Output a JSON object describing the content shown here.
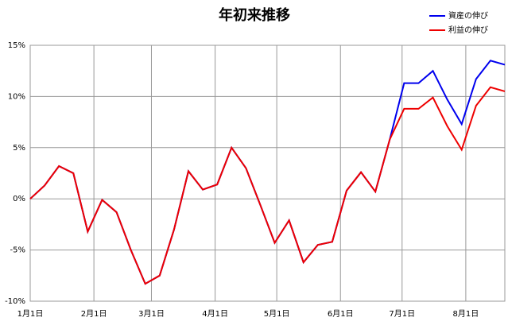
{
  "chart_data": {
    "type": "line",
    "title": "年初来推移",
    "x": [
      0,
      7,
      14,
      21,
      28,
      35,
      42,
      49,
      56,
      63,
      70,
      77,
      84,
      91,
      98,
      105,
      112,
      119,
      126,
      133,
      140,
      147,
      154,
      161,
      168,
      175,
      182,
      189,
      196,
      203,
      210,
      217,
      224,
      231
    ],
    "series": [
      {
        "name": "資産の伸び",
        "color": "#0000ee",
        "values": [
          0,
          1.3,
          3.2,
          2.5,
          -3.2,
          -0.1,
          -1.3,
          -5,
          -8.3,
          -7.5,
          -3,
          2.7,
          0.9,
          1.4,
          5,
          3,
          -0.6,
          -4.3,
          -2.1,
          -6.2,
          -4.5,
          -4.2,
          0.8,
          2.6,
          0.7,
          5.8,
          11.3,
          11.3,
          12.5,
          9.7,
          7.3,
          11.7,
          13.5,
          13.1
        ]
      },
      {
        "name": "利益の伸び",
        "color": "#ee0000",
        "values": [
          0,
          1.3,
          3.2,
          2.5,
          -3.2,
          -0.1,
          -1.3,
          -5,
          -8.3,
          -7.5,
          -3,
          2.7,
          0.9,
          1.4,
          5,
          3,
          -0.6,
          -4.3,
          -2.1,
          -6.2,
          -4.5,
          -4.2,
          0.8,
          2.6,
          0.7,
          5.8,
          8.8,
          8.8,
          9.9,
          7.1,
          4.8,
          9.1,
          10.9,
          10.5
        ]
      }
    ],
    "xlim": [
      0,
      231
    ],
    "xticks": [
      {
        "value": 0,
        "label": "1月1日"
      },
      {
        "value": 31,
        "label": "2月1日"
      },
      {
        "value": 59,
        "label": "3月1日"
      },
      {
        "value": 90,
        "label": "4月1日"
      },
      {
        "value": 120,
        "label": "5月1日"
      },
      {
        "value": 151,
        "label": "6月1日"
      },
      {
        "value": 181,
        "label": "7月1日"
      },
      {
        "value": 212,
        "label": "8月1日"
      }
    ],
    "ylim": [
      -10,
      15
    ],
    "yticks": [
      {
        "value": -10,
        "label": "-10%"
      },
      {
        "value": -5,
        "label": "-5%"
      },
      {
        "value": 0,
        "label": "0%"
      },
      {
        "value": 5,
        "label": "5%"
      },
      {
        "value": 10,
        "label": "10%"
      },
      {
        "value": 15,
        "label": "15%"
      }
    ],
    "grid": true,
    "legend": "top-right"
  }
}
